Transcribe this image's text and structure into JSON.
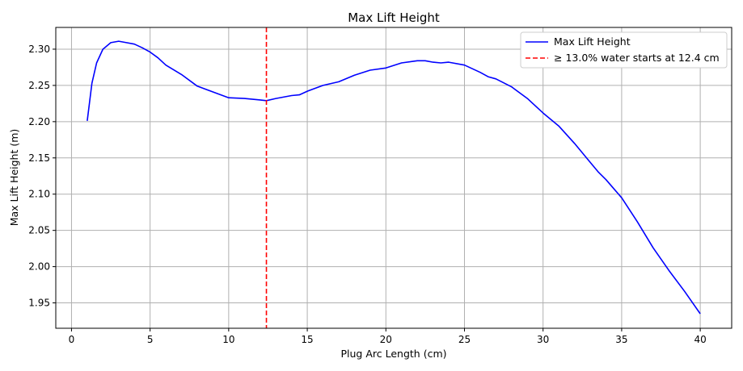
{
  "chart_data": {
    "type": "line",
    "title": "Max Lift Height",
    "xlabel": "Plug Arc Length (cm)",
    "ylabel": "Max Lift Height (m)",
    "xlim": [
      -1,
      42
    ],
    "ylim": [
      1.915,
      2.33
    ],
    "xticks": [
      0,
      5,
      10,
      15,
      20,
      25,
      30,
      35,
      40
    ],
    "yticks": [
      1.95,
      2.0,
      2.05,
      2.1,
      2.15,
      2.2,
      2.25,
      2.3
    ],
    "xtick_labels": [
      "0",
      "5",
      "10",
      "15",
      "20",
      "25",
      "30",
      "35",
      "40"
    ],
    "ytick_labels": [
      "1.95",
      "2.00",
      "2.05",
      "2.10",
      "2.15",
      "2.20",
      "2.25",
      "2.30"
    ],
    "grid": true,
    "legend_position": "top-right",
    "series": [
      {
        "name": "Max Lift Height",
        "color": "#0000ff",
        "style": "solid",
        "x": [
          1.0,
          1.3,
          1.6,
          2.0,
          2.5,
          3.0,
          3.5,
          4.0,
          4.5,
          5.0,
          5.5,
          6.0,
          7.0,
          8.0,
          9.0,
          10.0,
          11.0,
          12.0,
          12.4,
          13.0,
          14.0,
          14.5,
          15.0,
          16.0,
          17.0,
          18.0,
          19.0,
          20.0,
          21.0,
          22.0,
          22.5,
          23.0,
          23.5,
          24.0,
          25.0,
          26.0,
          26.5,
          27.0,
          28.0,
          29.0,
          30.0,
          31.0,
          32.0,
          33.0,
          33.5,
          34.0,
          35.0,
          36.0,
          37.0,
          38.0,
          39.0,
          40.0
        ],
        "y": [
          2.201,
          2.253,
          2.281,
          2.3,
          2.309,
          2.311,
          2.309,
          2.307,
          2.302,
          2.296,
          2.288,
          2.278,
          2.265,
          2.249,
          2.241,
          2.233,
          2.232,
          2.23,
          2.229,
          2.232,
          2.236,
          2.237,
          2.242,
          2.25,
          2.255,
          2.264,
          2.271,
          2.274,
          2.281,
          2.284,
          2.284,
          2.282,
          2.281,
          2.282,
          2.278,
          2.268,
          2.262,
          2.259,
          2.248,
          2.232,
          2.212,
          2.194,
          2.17,
          2.144,
          2.131,
          2.12,
          2.095,
          2.062,
          2.026,
          1.995,
          1.966,
          1.935
        ]
      },
      {
        "name": "≥ 13.0% water starts at 12.4 cm",
        "color": "#ff0000",
        "style": "dashed",
        "vline_x": 12.4
      }
    ]
  }
}
